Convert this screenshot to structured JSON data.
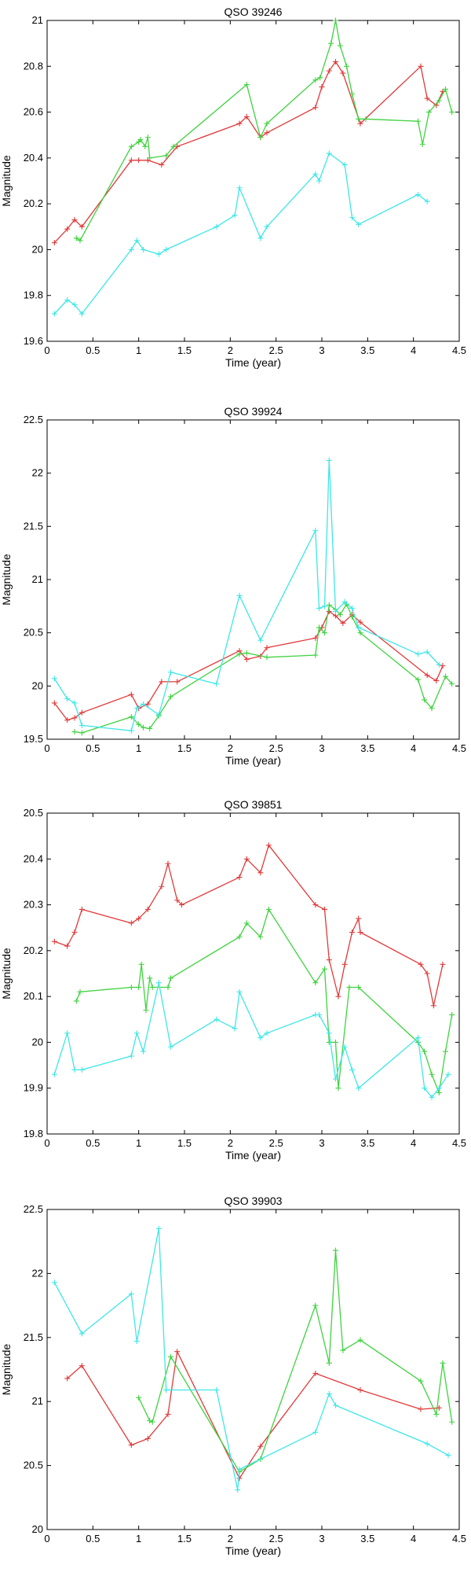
{
  "chart_data": [
    {
      "type": "line",
      "title": "QSO 39246",
      "xlabel": "Time (year)",
      "ylabel": "Magnitude",
      "xlim": [
        0,
        4.5
      ],
      "ylim": [
        19.6,
        21
      ],
      "xticks": [
        0,
        0.5,
        1,
        1.5,
        2,
        2.5,
        3,
        3.5,
        4,
        4.5
      ],
      "xtick_labels": [
        "0",
        "0.5",
        "1",
        "1.5",
        "2",
        "2.5",
        "3",
        "3.5",
        "4",
        "4.5"
      ],
      "yticks": [
        19.6,
        19.8,
        20,
        20.2,
        20.4,
        20.6,
        20.8,
        21
      ],
      "ytick_labels": [
        "19.6",
        "19.8",
        "20",
        "20.2",
        "20.4",
        "20.6",
        "20.8",
        "21"
      ],
      "series": [
        {
          "name": "red",
          "color": "#e03a3a",
          "x": [
            0.08,
            0.22,
            0.3,
            0.38,
            0.92,
            1.0,
            1.1,
            1.25,
            1.42,
            2.1,
            2.18,
            2.33,
            2.4,
            2.93,
            3.0,
            3.08,
            3.15,
            3.23,
            3.42,
            4.08,
            4.15,
            4.25,
            4.32
          ],
          "y": [
            20.03,
            20.09,
            20.13,
            20.1,
            20.39,
            20.39,
            20.39,
            20.37,
            20.45,
            20.55,
            20.58,
            20.49,
            20.51,
            20.62,
            20.71,
            20.78,
            20.82,
            20.77,
            20.55,
            20.8,
            20.66,
            20.63,
            20.69
          ]
        },
        {
          "name": "green",
          "color": "#3fd23f",
          "x": [
            0.32,
            0.36,
            0.92,
            1.0,
            1.02,
            1.07,
            1.1,
            1.12,
            1.3,
            1.38,
            2.18,
            2.33,
            2.4,
            2.93,
            2.98,
            3.1,
            3.15,
            3.2,
            3.27,
            3.33,
            3.4,
            3.48,
            4.05,
            4.1,
            4.17,
            4.28,
            4.35,
            4.42
          ],
          "y": [
            20.05,
            20.04,
            20.45,
            20.47,
            20.48,
            20.45,
            20.49,
            20.4,
            20.41,
            20.45,
            20.72,
            20.49,
            20.55,
            20.74,
            20.75,
            20.9,
            21.0,
            20.89,
            20.8,
            20.68,
            20.57,
            20.57,
            20.56,
            20.46,
            20.6,
            20.65,
            20.7,
            20.6
          ]
        },
        {
          "name": "cyan",
          "color": "#3fe6e6",
          "x": [
            0.08,
            0.22,
            0.3,
            0.38,
            0.92,
            0.98,
            1.05,
            1.22,
            1.3,
            1.85,
            2.05,
            2.1,
            2.33,
            2.4,
            2.93,
            2.97,
            3.08,
            3.25,
            3.33,
            3.4,
            4.05,
            4.15
          ],
          "y": [
            19.72,
            19.78,
            19.76,
            19.72,
            20.0,
            20.04,
            20.0,
            19.98,
            20.0,
            20.1,
            20.15,
            20.27,
            20.05,
            20.1,
            20.33,
            20.3,
            20.42,
            20.37,
            20.14,
            20.11,
            20.24,
            20.21
          ]
        }
      ]
    },
    {
      "type": "line",
      "title": "QSO 39924",
      "xlabel": "Time (year)",
      "ylabel": "Magnitude",
      "xlim": [
        0,
        4.5
      ],
      "ylim": [
        19.5,
        22.5
      ],
      "xticks": [
        0,
        0.5,
        1,
        1.5,
        2,
        2.5,
        3,
        3.5,
        4,
        4.5
      ],
      "xtick_labels": [
        "0",
        "0.5",
        "1",
        "1.5",
        "2",
        "2.5",
        "3",
        "3.5",
        "4",
        "4.5"
      ],
      "yticks": [
        19.5,
        20,
        20.5,
        21,
        21.5,
        22,
        22.5
      ],
      "ytick_labels": [
        "19.5",
        "20",
        "20.5",
        "21",
        "21.5",
        "22",
        "22.5"
      ],
      "series": [
        {
          "name": "red",
          "color": "#e03a3a",
          "x": [
            0.08,
            0.22,
            0.3,
            0.38,
            0.92,
            1.0,
            1.1,
            1.25,
            1.42,
            2.1,
            2.18,
            2.33,
            2.4,
            2.93,
            3.0,
            3.08,
            3.15,
            3.23,
            3.33,
            3.42,
            4.15,
            4.25,
            4.32
          ],
          "y": [
            19.84,
            19.68,
            19.7,
            19.75,
            19.92,
            19.79,
            19.83,
            20.04,
            20.04,
            20.33,
            20.25,
            20.28,
            20.36,
            20.45,
            20.55,
            20.7,
            20.66,
            20.59,
            20.67,
            20.6,
            20.1,
            20.05,
            20.19
          ]
        },
        {
          "name": "green",
          "color": "#3fd23f",
          "x": [
            0.3,
            0.38,
            0.92,
            1.0,
            1.05,
            1.12,
            1.22,
            1.35,
            2.1,
            2.18,
            2.4,
            2.93,
            2.97,
            3.03,
            3.08,
            3.15,
            3.2,
            3.27,
            3.33,
            3.42,
            4.05,
            4.12,
            4.2,
            4.35,
            4.42
          ],
          "y": [
            19.57,
            19.56,
            19.71,
            19.64,
            19.61,
            19.6,
            19.72,
            19.9,
            20.3,
            20.31,
            20.27,
            20.29,
            20.55,
            20.5,
            20.76,
            20.72,
            20.67,
            20.77,
            20.65,
            20.5,
            20.06,
            19.87,
            19.79,
            20.09,
            20.02
          ]
        },
        {
          "name": "cyan",
          "color": "#3fe6e6",
          "x": [
            0.08,
            0.22,
            0.3,
            0.38,
            0.92,
            0.98,
            1.05,
            1.22,
            1.35,
            1.85,
            2.1,
            2.33,
            2.93,
            2.97,
            3.03,
            3.08,
            3.15,
            3.25,
            3.33,
            3.4,
            4.05,
            4.15,
            4.28
          ],
          "y": [
            20.07,
            19.88,
            19.84,
            19.63,
            19.58,
            19.79,
            19.83,
            19.73,
            20.13,
            20.02,
            20.85,
            20.43,
            21.46,
            20.73,
            20.75,
            22.12,
            20.7,
            20.79,
            20.73,
            20.55,
            20.3,
            20.32,
            20.2
          ]
        }
      ]
    },
    {
      "type": "line",
      "title": "QSO 39851",
      "xlabel": "Time (year)",
      "ylabel": "Magnitude",
      "xlim": [
        0,
        4.5
      ],
      "ylim": [
        19.8,
        20.5
      ],
      "xticks": [
        0,
        0.5,
        1,
        1.5,
        2,
        2.5,
        3,
        3.5,
        4,
        4.5
      ],
      "xtick_labels": [
        "0",
        "0.5",
        "1",
        "1.5",
        "2",
        "2.5",
        "3",
        "3.5",
        "4",
        "4.5"
      ],
      "yticks": [
        19.8,
        19.9,
        20,
        20.1,
        20.2,
        20.3,
        20.4,
        20.5
      ],
      "ytick_labels": [
        "19.8",
        "19.9",
        "20",
        "20.1",
        "20.2",
        "20.3",
        "20.4",
        "20.5"
      ],
      "series": [
        {
          "name": "red",
          "color": "#e03a3a",
          "x": [
            0.08,
            0.22,
            0.3,
            0.38,
            0.92,
            1.0,
            1.1,
            1.25,
            1.32,
            1.42,
            1.47,
            2.1,
            2.18,
            2.33,
            2.42,
            2.93,
            3.03,
            3.08,
            3.18,
            3.25,
            3.33,
            3.4,
            3.42,
            4.08,
            4.15,
            4.22,
            4.32
          ],
          "y": [
            20.22,
            20.21,
            20.24,
            20.29,
            20.26,
            20.27,
            20.29,
            20.34,
            20.39,
            20.31,
            20.3,
            20.36,
            20.4,
            20.37,
            20.43,
            20.3,
            20.29,
            20.18,
            20.1,
            20.17,
            20.24,
            20.27,
            20.24,
            20.17,
            20.15,
            20.08,
            20.17
          ]
        },
        {
          "name": "green",
          "color": "#3fd23f",
          "x": [
            0.32,
            0.36,
            0.92,
            1.0,
            1.03,
            1.08,
            1.12,
            1.15,
            1.32,
            1.35,
            2.1,
            2.18,
            2.33,
            2.42,
            2.93,
            3.03,
            3.08,
            3.15,
            3.18,
            3.3,
            3.4,
            4.05,
            4.12,
            4.2,
            4.28,
            4.35,
            4.42
          ],
          "y": [
            20.09,
            20.11,
            20.12,
            20.12,
            20.17,
            20.07,
            20.14,
            20.12,
            20.12,
            20.14,
            20.23,
            20.26,
            20.23,
            20.29,
            20.13,
            20.16,
            20.0,
            20.0,
            19.9,
            20.12,
            20.12,
            20.0,
            19.98,
            19.93,
            19.89,
            19.98,
            20.06
          ]
        },
        {
          "name": "cyan",
          "color": "#3fe6e6",
          "x": [
            0.08,
            0.22,
            0.3,
            0.38,
            0.92,
            0.98,
            1.05,
            1.22,
            1.35,
            1.85,
            2.05,
            2.1,
            2.33,
            2.4,
            2.93,
            2.97,
            3.08,
            3.15,
            3.25,
            3.33,
            3.4,
            4.05,
            4.12,
            4.2,
            4.28,
            4.38
          ],
          "y": [
            19.93,
            20.02,
            19.94,
            19.94,
            19.97,
            20.02,
            19.98,
            20.13,
            19.99,
            20.05,
            20.03,
            20.11,
            20.01,
            20.02,
            20.06,
            20.06,
            20.02,
            19.92,
            19.99,
            19.94,
            19.9,
            20.01,
            19.9,
            19.88,
            19.9,
            19.93
          ]
        }
      ]
    },
    {
      "type": "line",
      "title": "QSO 39903",
      "xlabel": "Time (year)",
      "ylabel": "Magnitude",
      "xlim": [
        0,
        4.5
      ],
      "ylim": [
        20,
        22.5
      ],
      "xticks": [
        0,
        0.5,
        1,
        1.5,
        2,
        2.5,
        3,
        3.5,
        4,
        4.5
      ],
      "xtick_labels": [
        "0",
        "0.5",
        "1",
        "1.5",
        "2",
        "2.5",
        "3",
        "3.5",
        "4",
        "4.5"
      ],
      "yticks": [
        20,
        20.5,
        21,
        21.5,
        22,
        22.5
      ],
      "ytick_labels": [
        "20",
        "20.5",
        "21",
        "21.5",
        "22",
        "22.5"
      ],
      "series": [
        {
          "name": "red",
          "color": "#e03a3a",
          "x": [
            0.22,
            0.38,
            0.92,
            1.1,
            1.32,
            1.42,
            2.1,
            2.33,
            2.93,
            3.42,
            4.08,
            4.28
          ],
          "y": [
            21.18,
            21.28,
            20.66,
            20.71,
            20.9,
            21.39,
            20.4,
            20.65,
            21.22,
            21.09,
            20.94,
            20.95
          ]
        },
        {
          "name": "green",
          "color": "#3fd23f",
          "x": [
            1.0,
            1.12,
            1.15,
            1.35,
            2.1,
            2.33,
            2.93,
            3.08,
            3.15,
            3.23,
            3.42,
            4.08,
            4.25,
            4.32,
            4.42
          ],
          "y": [
            21.03,
            20.85,
            20.84,
            21.35,
            20.45,
            20.55,
            21.75,
            21.3,
            22.18,
            21.4,
            21.48,
            21.16,
            20.9,
            21.3,
            20.84
          ]
        },
        {
          "name": "cyan",
          "color": "#3fe6e6",
          "x": [
            0.08,
            0.38,
            0.92,
            0.98,
            1.22,
            1.3,
            1.85,
            2.08,
            2.1,
            2.93,
            3.08,
            3.15,
            4.15,
            4.38
          ],
          "y": [
            21.93,
            21.53,
            21.84,
            21.47,
            22.35,
            21.09,
            21.09,
            20.31,
            20.47,
            20.76,
            21.06,
            20.97,
            20.67,
            20.58
          ]
        }
      ]
    }
  ]
}
